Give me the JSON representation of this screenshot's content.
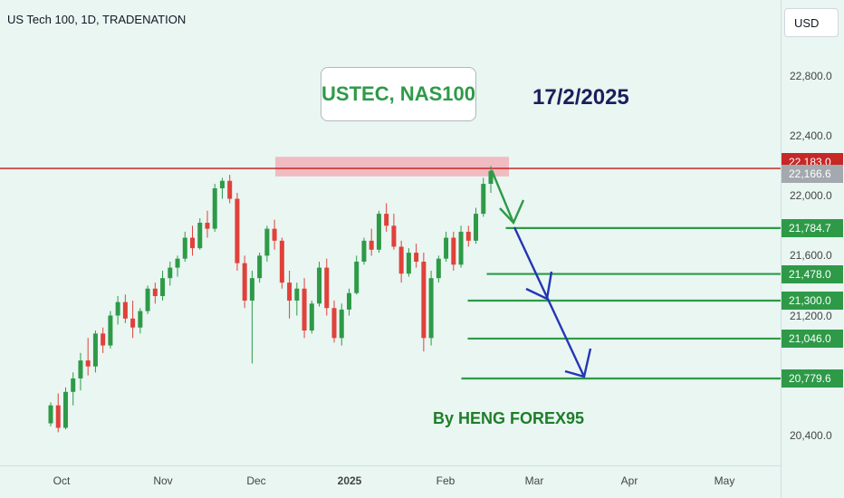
{
  "header": {
    "symbol": "US Tech 100, 1D, TRADENATION",
    "currency": "USD"
  },
  "annotations": {
    "title": "USTEC, NAS100",
    "date": "17/2/2025",
    "author": "By HENG FOREX95"
  },
  "colors": {
    "up": "#2e9a48",
    "down": "#e0413a",
    "level_line": "#2e9a48",
    "resistance_line": "#c62828",
    "zone": "#f2a7b0",
    "arrow_green": "#2e9a48",
    "arrow_blue": "#2336b5",
    "price_tag": "#a3a9ae"
  },
  "chart_data": {
    "type": "candlestick",
    "title": "US Tech 100, 1D, TRADENATION",
    "x_ticks": [
      "Oct",
      "Nov",
      "Dec",
      "2025",
      "Feb",
      "Mar",
      "Apr",
      "May"
    ],
    "y_ticks": [
      "22,800.0",
      "22,400.0",
      "22,000.0",
      "21,600.0",
      "21,200.0",
      "20,400.0"
    ],
    "ylim": [
      20300,
      23000
    ],
    "resistance_price": 22183.0,
    "resistance_label": "22,183.0",
    "current_price": 22166.6,
    "current_label": "22,166.6",
    "resistance_zone": [
      22130,
      22260
    ],
    "levels": [
      {
        "price": 21784.7,
        "label": "21,784.7",
        "start": "2025-02-20"
      },
      {
        "price": 21478.0,
        "label": "21,478.0",
        "start": "2025-02-14"
      },
      {
        "price": 21300.0,
        "label": "21,300.0",
        "start": "2025-02-08"
      },
      {
        "price": 21046.0,
        "label": "21,046.0",
        "start": "2025-02-08"
      },
      {
        "price": 20779.6,
        "label": "20,779.6",
        "start": "2025-02-06"
      }
    ],
    "candles": [
      [
        20480,
        20620,
        20460,
        20600
      ],
      [
        20600,
        20680,
        20420,
        20450
      ],
      [
        20450,
        20720,
        20440,
        20690
      ],
      [
        20690,
        20820,
        20600,
        20780
      ],
      [
        20780,
        20950,
        20700,
        20900
      ],
      [
        20900,
        21050,
        20800,
        20860
      ],
      [
        20860,
        21100,
        20820,
        21080
      ],
      [
        21080,
        21120,
        20950,
        21000
      ],
      [
        21000,
        21230,
        20980,
        21200
      ],
      [
        21200,
        21330,
        21140,
        21290
      ],
      [
        21290,
        21340,
        21150,
        21180
      ],
      [
        21180,
        21300,
        21050,
        21120
      ],
      [
        21120,
        21250,
        21080,
        21230
      ],
      [
        21230,
        21400,
        21210,
        21380
      ],
      [
        21380,
        21420,
        21280,
        21330
      ],
      [
        21330,
        21500,
        21300,
        21450
      ],
      [
        21450,
        21560,
        21400,
        21520
      ],
      [
        21520,
        21600,
        21460,
        21580
      ],
      [
        21580,
        21760,
        21560,
        21720
      ],
      [
        21720,
        21800,
        21600,
        21650
      ],
      [
        21650,
        21850,
        21640,
        21820
      ],
      [
        21820,
        21900,
        21720,
        21780
      ],
      [
        21780,
        22080,
        21760,
        22050
      ],
      [
        22050,
        22120,
        21980,
        22100
      ],
      [
        22100,
        22140,
        21950,
        21980
      ],
      [
        21980,
        22020,
        21500,
        21550
      ],
      [
        21550,
        21600,
        21250,
        21300
      ],
      [
        21300,
        21500,
        20880,
        21450
      ],
      [
        21450,
        21620,
        21420,
        21600
      ],
      [
        21600,
        21800,
        21560,
        21780
      ],
      [
        21780,
        21840,
        21640,
        21700
      ],
      [
        21700,
        21720,
        21380,
        21420
      ],
      [
        21420,
        21500,
        21180,
        21300
      ],
      [
        21300,
        21420,
        21200,
        21380
      ],
      [
        21380,
        21450,
        21050,
        21100
      ],
      [
        21100,
        21300,
        21080,
        21280
      ],
      [
        21280,
        21560,
        21260,
        21520
      ],
      [
        21520,
        21580,
        21200,
        21250
      ],
      [
        21250,
        21300,
        21020,
        21050
      ],
      [
        21050,
        21280,
        21000,
        21240
      ],
      [
        21240,
        21380,
        21200,
        21350
      ],
      [
        21350,
        21600,
        21340,
        21560
      ],
      [
        21560,
        21720,
        21540,
        21700
      ],
      [
        21700,
        21780,
        21600,
        21640
      ],
      [
        21640,
        21900,
        21620,
        21880
      ],
      [
        21880,
        21950,
        21760,
        21800
      ],
      [
        21800,
        21880,
        21640,
        21660
      ],
      [
        21660,
        21700,
        21420,
        21480
      ],
      [
        21480,
        21650,
        21460,
        21620
      ],
      [
        21620,
        21680,
        21520,
        21560
      ],
      [
        21560,
        21620,
        20960,
        21050
      ],
      [
        21050,
        21500,
        21000,
        21450
      ],
      [
        21450,
        21600,
        21420,
        21580
      ],
      [
        21580,
        21760,
        21560,
        21720
      ],
      [
        21720,
        21760,
        21500,
        21540
      ],
      [
        21540,
        21800,
        21520,
        21760
      ],
      [
        21760,
        21800,
        21660,
        21700
      ],
      [
        21700,
        21920,
        21680,
        21880
      ],
      [
        21880,
        22120,
        21860,
        22080
      ],
      [
        22080,
        22200,
        22020,
        22166
      ]
    ]
  }
}
